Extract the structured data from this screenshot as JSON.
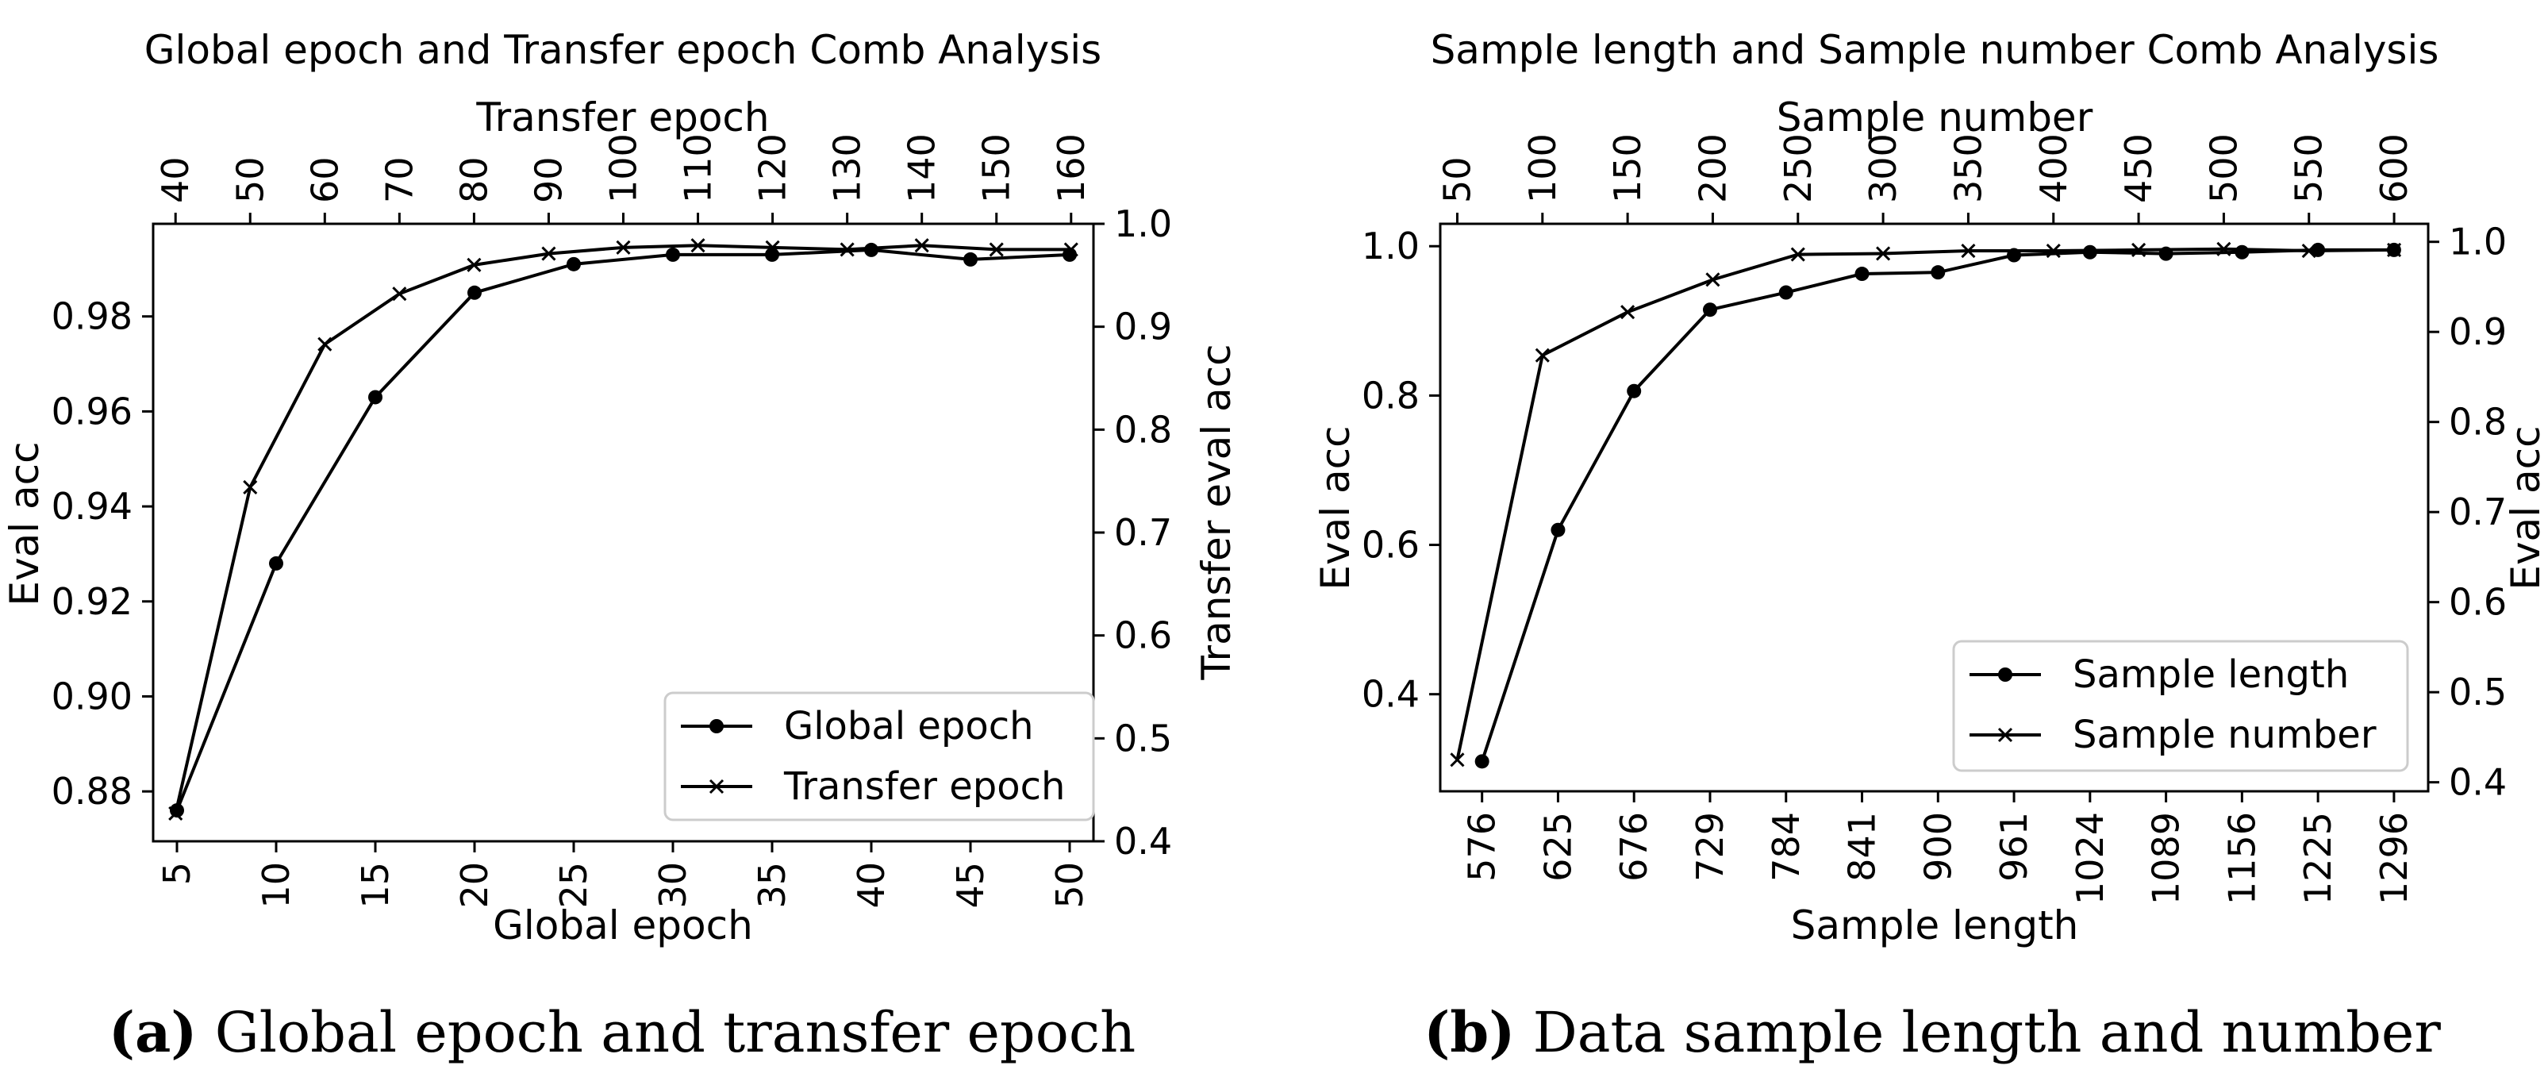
{
  "chart_data": [
    {
      "type": "line",
      "title": "Global epoch and Transfer epoch Comb Analysis",
      "xlabel": "Global epoch",
      "ylabel": "Eval acc",
      "x2label": "Transfer epoch",
      "y2label": "Transfer eval acc",
      "x": [
        5,
        10,
        15,
        20,
        25,
        30,
        35,
        40,
        45,
        50
      ],
      "xticks": [
        5,
        10,
        15,
        20,
        25,
        30,
        35,
        40,
        45,
        50
      ],
      "yticks": [
        "0.88",
        "0.90",
        "0.92",
        "0.94",
        "0.96",
        "0.98"
      ],
      "x2ticks": [
        40,
        50,
        60,
        70,
        80,
        90,
        100,
        110,
        120,
        130,
        140,
        150,
        160
      ],
      "y2ticks": [
        "0.4",
        "0.5",
        "0.6",
        "0.7",
        "0.8",
        "0.9",
        "1.0"
      ],
      "xlim": [
        3.8,
        51.2
      ],
      "ylim": [
        0.8695,
        0.9995
      ],
      "x2lim": [
        37,
        163
      ],
      "y2lim": [
        0.4,
        1.0
      ],
      "legend_position": "lower-right",
      "grid": false,
      "series": [
        {
          "name": "Global epoch",
          "marker": "circle",
          "axis": "primary",
          "x": [
            5,
            10,
            15,
            20,
            25,
            30,
            35,
            40,
            45,
            50
          ],
          "values": [
            0.876,
            0.928,
            0.963,
            0.985,
            0.991,
            0.993,
            0.993,
            0.994,
            0.992,
            0.993
          ]
        },
        {
          "name": "Transfer epoch",
          "marker": "x",
          "axis": "secondary",
          "x": [
            40,
            50,
            60,
            70,
            80,
            90,
            100,
            110,
            120,
            130,
            140,
            150,
            160
          ],
          "values": [
            0.427,
            0.744,
            0.883,
            0.932,
            0.96,
            0.971,
            0.977,
            0.979,
            0.977,
            0.975,
            0.979,
            0.975,
            0.975
          ]
        }
      ]
    },
    {
      "type": "line",
      "title": "Sample length and Sample number Comb Analysis",
      "xlabel": "Sample length",
      "ylabel": "Eval acc",
      "x2label": "Sample number",
      "y2label": "Eval acc",
      "xticks": [
        "576",
        "625",
        "676",
        "729",
        "784",
        "841",
        "900",
        "961",
        "1024",
        "1089",
        "1156",
        "1225",
        "1296"
      ],
      "yticks": [
        "0.4",
        "0.6",
        "0.8",
        "1.0"
      ],
      "x2ticks": [
        50,
        100,
        150,
        200,
        250,
        300,
        350,
        400,
        450,
        500,
        550,
        600
      ],
      "y2ticks": [
        "0.4",
        "0.5",
        "0.6",
        "0.7",
        "0.8",
        "0.9",
        "1.0"
      ],
      "xlim": [
        -0.55,
        12.45
      ],
      "ylim": [
        0.27,
        1.03
      ],
      "x2lim": [
        40,
        620
      ],
      "y2lim": [
        0.39,
        1.02
      ],
      "legend_position": "lower-right",
      "grid": false,
      "series": [
        {
          "name": "Sample length",
          "marker": "circle",
          "axis": "primary",
          "x": [
            "576",
            "625",
            "676",
            "729",
            "784",
            "841",
            "900",
            "961",
            "1024",
            "1089",
            "1156",
            "1225",
            "1296"
          ],
          "values": [
            0.31,
            0.62,
            0.806,
            0.915,
            0.938,
            0.963,
            0.965,
            0.988,
            0.992,
            0.99,
            0.992,
            0.995,
            0.995
          ]
        },
        {
          "name": "Sample number",
          "marker": "x",
          "axis": "secondary",
          "x": [
            50,
            100,
            150,
            200,
            250,
            300,
            350,
            400,
            450,
            500,
            550,
            600
          ],
          "values": [
            0.425,
            0.874,
            0.922,
            0.958,
            0.986,
            0.987,
            0.99,
            0.99,
            0.991,
            0.992,
            0.99,
            0.991
          ]
        }
      ]
    }
  ],
  "captions": [
    {
      "letter": "(a)",
      "text": "Global epoch and transfer epoch"
    },
    {
      "letter": "(b)",
      "text": "Data sample length and number"
    }
  ]
}
